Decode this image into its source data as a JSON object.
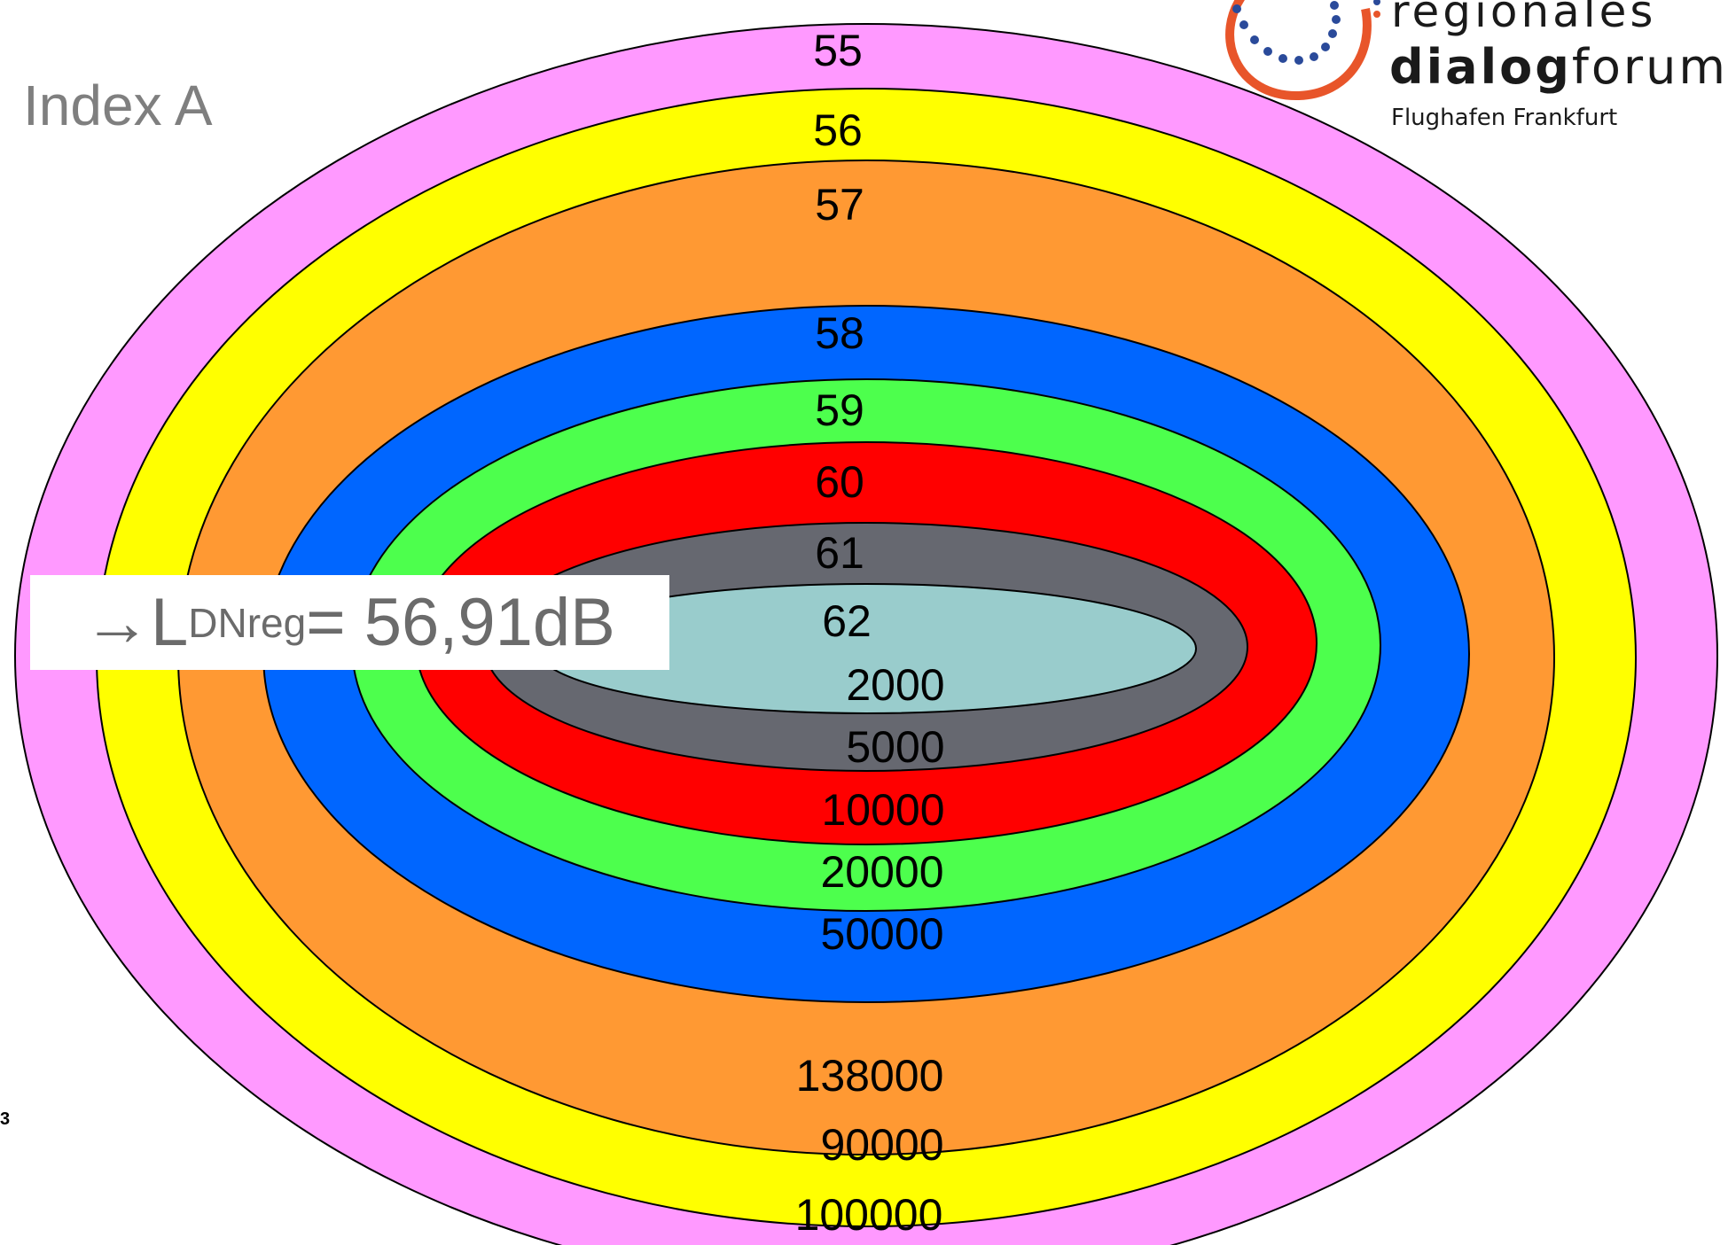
{
  "title": "Index A",
  "result": {
    "arrow": "→",
    "symbol": "L",
    "subscript": "DNreg",
    "value": "= 56,91dB"
  },
  "page_number": "3",
  "logo": {
    "line1": "regionales",
    "line2_bold": "dialog",
    "line2_rest": "forum",
    "line3": "Flughafen Frankfurt",
    "colors": {
      "ring": "#e8552a",
      "dots": "#2a4a9a"
    }
  },
  "rings": [
    {
      "color": "#ff99ff",
      "level": "55",
      "count": "100000"
    },
    {
      "color": "#ffff00",
      "level": "56",
      "count": "90000"
    },
    {
      "color": "#ff9933",
      "level": "57",
      "count": "138000"
    },
    {
      "color": "#0066ff",
      "level": "58",
      "count": "50000"
    },
    {
      "color": "#4dff4d",
      "level": "59",
      "count": "20000"
    },
    {
      "color": "#ff0000",
      "level": "60",
      "count": "10000"
    },
    {
      "color": "#666870",
      "level": "61",
      "count": "5000"
    },
    {
      "color": "#99cccc",
      "level": "62",
      "count": "2000"
    }
  ]
}
